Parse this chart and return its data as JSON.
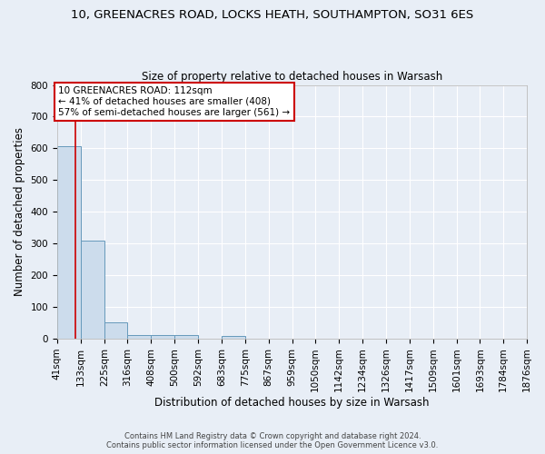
{
  "title_line1": "10, GREENACRES ROAD, LOCKS HEATH, SOUTHAMPTON, SO31 6ES",
  "title_line2": "Size of property relative to detached houses in Warsash",
  "xlabel": "Distribution of detached houses by size in Warsash",
  "ylabel": "Number of detached properties",
  "footer_line1": "Contains HM Land Registry data © Crown copyright and database right 2024.",
  "footer_line2": "Contains public sector information licensed under the Open Government Licence v3.0.",
  "bin_edges": [
    41,
    133,
    225,
    316,
    408,
    500,
    592,
    683,
    775,
    867,
    959,
    1050,
    1142,
    1234,
    1326,
    1417,
    1509,
    1601,
    1693,
    1784,
    1876
  ],
  "bin_labels": [
    "41sqm",
    "133sqm",
    "225sqm",
    "316sqm",
    "408sqm",
    "500sqm",
    "592sqm",
    "683sqm",
    "775sqm",
    "867sqm",
    "959sqm",
    "1050sqm",
    "1142sqm",
    "1234sqm",
    "1326sqm",
    "1417sqm",
    "1509sqm",
    "1601sqm",
    "1693sqm",
    "1784sqm",
    "1876sqm"
  ],
  "bar_heights": [
    608,
    310,
    51,
    10,
    12,
    12,
    0,
    8,
    0,
    0,
    0,
    0,
    0,
    0,
    0,
    0,
    0,
    0,
    0,
    0
  ],
  "bar_color": "#ccdcec",
  "bar_edge_color": "#6699bb",
  "property_sqm": 112,
  "red_line_color": "#cc0000",
  "annotation_text_line1": "10 GREENACRES ROAD: 112sqm",
  "annotation_text_line2": "← 41% of detached houses are smaller (408)",
  "annotation_text_line3": "57% of semi-detached houses are larger (561) →",
  "annotation_box_facecolor": "#ffffff",
  "annotation_box_edgecolor": "#cc0000",
  "ylim": [
    0,
    800
  ],
  "yticks": [
    0,
    100,
    200,
    300,
    400,
    500,
    600,
    700,
    800
  ],
  "background_color": "#e8eef6",
  "plot_bg_color": "#e8eef6",
  "grid_color": "#ffffff",
  "title_fontsize": 9.5,
  "subtitle_fontsize": 8.5,
  "tick_labelsize": 7.5,
  "axis_labelsize": 8.5
}
